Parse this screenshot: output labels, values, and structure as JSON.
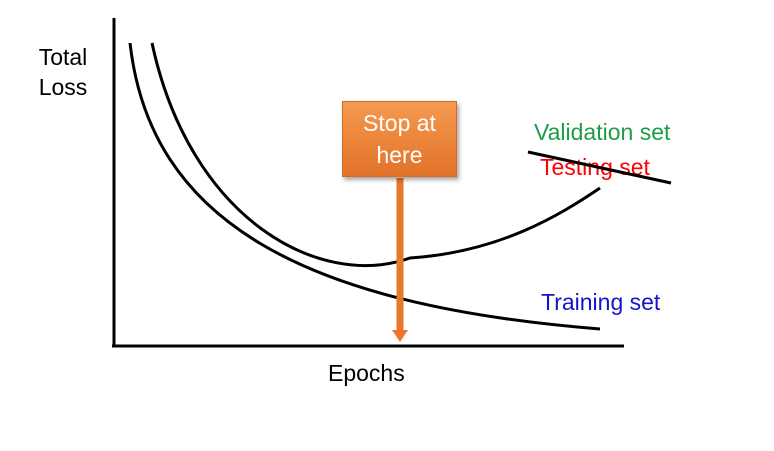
{
  "labels": {
    "y_axis": "Total\nLoss",
    "x_axis": "Epochs",
    "stop": "Stop at\nhere",
    "validation": "Validation set",
    "testing": "Testing set",
    "training": "Training set"
  },
  "colors": {
    "axis": "#000000",
    "curve": "#000000",
    "validation": "#1e9e42",
    "testing": "#ff0000",
    "training": "#1414cc",
    "stop_box": "#ef8535",
    "arrow": "#e8782a"
  }
}
